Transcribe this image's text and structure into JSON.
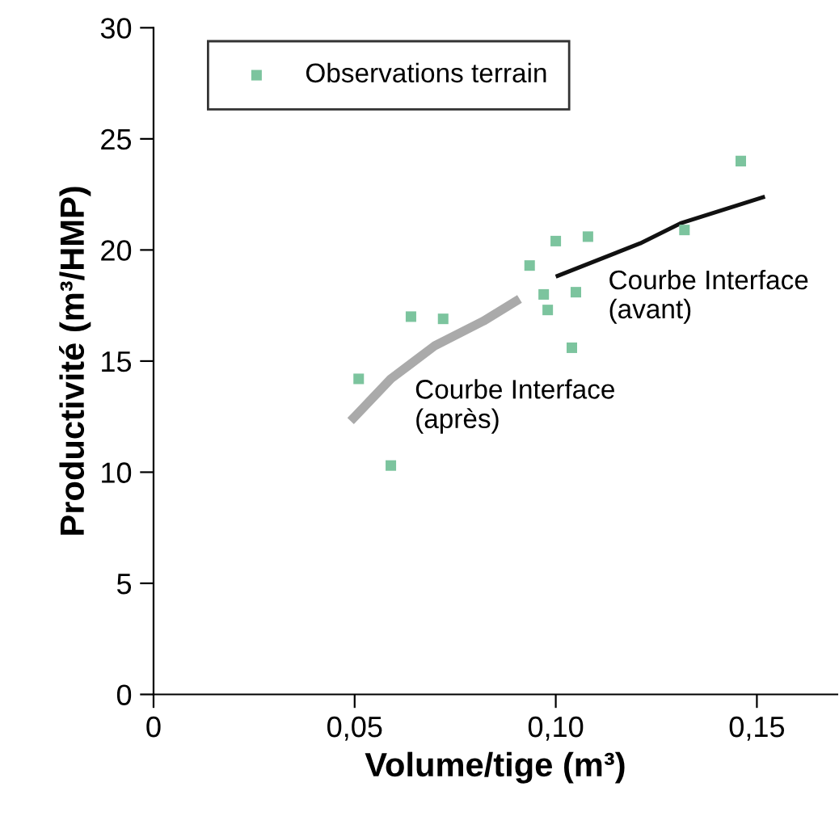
{
  "chart_data": {
    "type": "scatter",
    "xlabel": "Volume/tige (m³)",
    "ylabel": "Productivité (m³/HMP)",
    "xlim": [
      0,
      0.17
    ],
    "ylim": [
      0,
      30
    ],
    "xticks": [
      {
        "value": 0,
        "label": "0"
      },
      {
        "value": 0.05,
        "label": "0,05"
      },
      {
        "value": 0.1,
        "label": "0,10"
      },
      {
        "value": 0.15,
        "label": "0,15"
      }
    ],
    "yticks": [
      0,
      5,
      10,
      15,
      20,
      25,
      30
    ],
    "grid": false,
    "legend": "top left",
    "series": [
      {
        "name": "Observations terrain",
        "marker": "square",
        "color": "#7cc49e",
        "x": [
          0.051,
          0.059,
          0.064,
          0.072,
          0.0935,
          0.1,
          0.108,
          0.097,
          0.098,
          0.105,
          0.104,
          0.132,
          0.146
        ],
        "values": [
          14.2,
          10.3,
          17.0,
          16.9,
          19.3,
          20.4,
          20.6,
          18.0,
          17.3,
          18.1,
          15.6,
          20.9,
          24.0
        ]
      },
      {
        "type": "line",
        "color": "#aaaaaa",
        "x": [
          0.049,
          0.059,
          0.07,
          0.082,
          0.091
        ],
        "values": [
          12.3,
          14.2,
          15.7,
          16.8,
          17.8
        ]
      },
      {
        "type": "line",
        "color": "#111111",
        "x": [
          0.1,
          0.121,
          0.131,
          0.152
        ],
        "values": [
          18.8,
          20.3,
          21.2,
          22.4
        ]
      }
    ],
    "annotations": [
      "Courbe Interface\n(avant)",
      "Courbe Interface\n(après)"
    ]
  }
}
